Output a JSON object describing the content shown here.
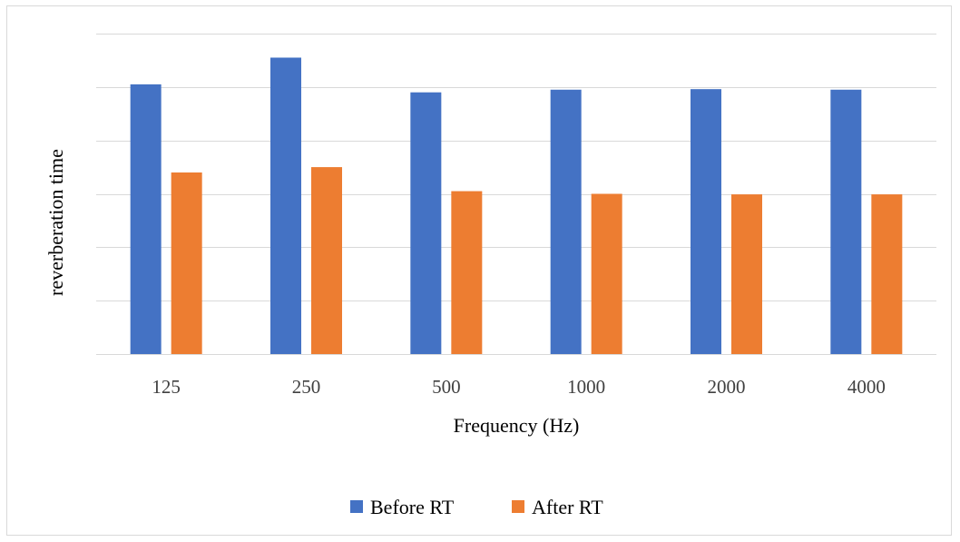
{
  "chart_data": {
    "type": "bar",
    "categories": [
      "125",
      "250",
      "500",
      "1000",
      "2000",
      "4000"
    ],
    "series": [
      {
        "name": "Before RT",
        "color": "#4472c4",
        "values": [
          5.05,
          5.55,
          4.9,
          4.95,
          4.96,
          4.95
        ]
      },
      {
        "name": "After RT",
        "color": "#ed7d31",
        "values": [
          3.4,
          3.5,
          3.05,
          3.0,
          2.99,
          2.99
        ]
      }
    ],
    "title": "",
    "xlabel": "Frequency (Hz)",
    "ylabel": "reverberation time",
    "ylim": [
      0,
      6
    ],
    "y_gridlines": [
      0,
      1,
      2,
      3,
      4,
      5,
      6
    ],
    "y_tick_labels_visible": false,
    "grid": true,
    "legend_position": "bottom"
  }
}
